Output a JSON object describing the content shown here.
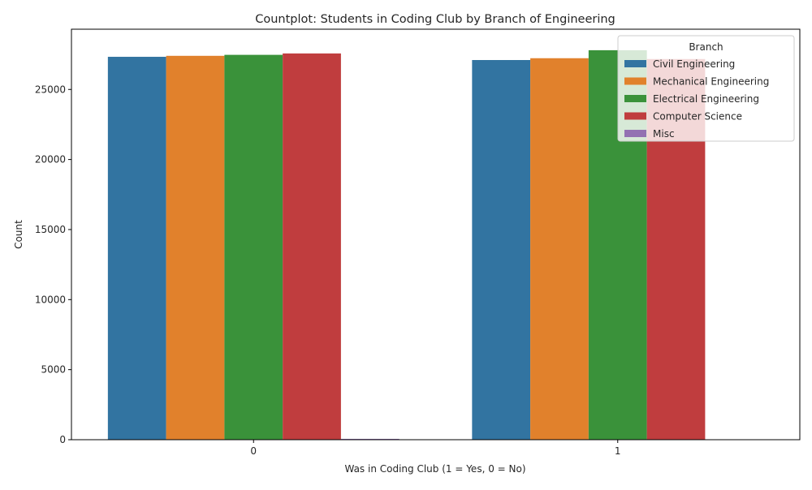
{
  "chart_data": {
    "type": "bar",
    "title": "Countplot: Students in Coding Club by Branch of Engineering",
    "xlabel": "Was in Coding Club (1 = Yes, 0 = No)",
    "ylabel": "Count",
    "categories": [
      "0",
      "1"
    ],
    "ylim": [
      0,
      29300
    ],
    "yticks": [
      0,
      5000,
      10000,
      15000,
      20000,
      25000
    ],
    "grid": false,
    "legend": {
      "title": "Branch",
      "placement": "top-right"
    },
    "series": [
      {
        "name": "Civil Engineering",
        "color": "#3274a1",
        "values": [
          27330,
          27100
        ]
      },
      {
        "name": "Mechanical Engineering",
        "color": "#e1812c",
        "values": [
          27400,
          27230
        ]
      },
      {
        "name": "Electrical Engineering",
        "color": "#3a923a",
        "values": [
          27470,
          27800
        ]
      },
      {
        "name": "Computer Science",
        "color": "#c03d3e",
        "values": [
          27570,
          27170
        ]
      },
      {
        "name": "Misc",
        "color": "#9372b2",
        "values": [
          60,
          0
        ]
      }
    ]
  }
}
